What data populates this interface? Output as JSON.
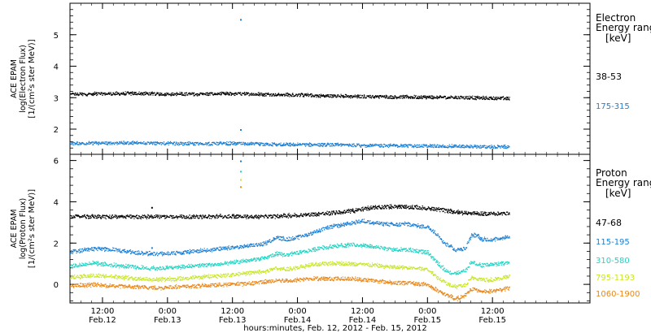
{
  "chart_data": [
    {
      "type": "scatter",
      "title": "",
      "ylabel_lines": [
        "ACE EPAM",
        "log(Electron Flux)",
        "[1/(cm²s ster MeV)]"
      ],
      "xlim": [
        0,
        96
      ],
      "ylim": [
        1.2,
        6.0
      ],
      "yticks": [
        2,
        3,
        4,
        5
      ],
      "legend_title_lines": [
        "Electron",
        "Energy range",
        "[keV]"
      ],
      "series": [
        {
          "name": "38-53",
          "color": "#000000",
          "points": [
            [
              0,
              3.12
            ],
            [
              6,
              3.14
            ],
            [
              12,
              3.15
            ],
            [
              18,
              3.13
            ],
            [
              24,
              3.13
            ],
            [
              30,
              3.14
            ],
            [
              36,
              3.12
            ],
            [
              42,
              3.1
            ],
            [
              48,
              3.07
            ],
            [
              54,
              3.05
            ],
            [
              60,
              3.04
            ],
            [
              66,
              3.03
            ],
            [
              72,
              3.02
            ],
            [
              78,
              3.0
            ],
            [
              81,
              2.99
            ]
          ],
          "outliers": []
        },
        {
          "name": "175-315",
          "color": "#1a7fd4",
          "points": [
            [
              0,
              1.57
            ],
            [
              6,
              1.57
            ],
            [
              12,
              1.58
            ],
            [
              18,
              1.56
            ],
            [
              24,
              1.55
            ],
            [
              30,
              1.56
            ],
            [
              36,
              1.53
            ],
            [
              42,
              1.52
            ],
            [
              48,
              1.52
            ],
            [
              54,
              1.5
            ],
            [
              60,
              1.49
            ],
            [
              66,
              1.48
            ],
            [
              72,
              1.47
            ],
            [
              78,
              1.45
            ],
            [
              81,
              1.45
            ]
          ],
          "outliers": [
            [
              31.4,
              5.5
            ],
            [
              31.4,
              2.0
            ]
          ]
        }
      ]
    },
    {
      "type": "scatter",
      "title": "",
      "ylabel_lines": [
        "ACE EPAM",
        "log(Proton Flux)",
        "[1/(cm²s ster MeV)]"
      ],
      "xlim": [
        0,
        96
      ],
      "ylim": [
        -0.9,
        6.3
      ],
      "yticks": [
        0,
        2,
        4,
        6
      ],
      "legend_title_lines": [
        "Proton",
        "Energy range",
        "[keV]"
      ],
      "series": [
        {
          "name": "47-68",
          "color": "#000000",
          "points": [
            [
              0,
              3.3
            ],
            [
              12,
              3.3
            ],
            [
              18,
              3.3
            ],
            [
              24,
              3.3
            ],
            [
              30,
              3.32
            ],
            [
              36,
              3.3
            ],
            [
              40,
              3.35
            ],
            [
              44,
              3.4
            ],
            [
              48,
              3.48
            ],
            [
              52,
              3.58
            ],
            [
              56,
              3.75
            ],
            [
              60,
              3.8
            ],
            [
              64,
              3.75
            ],
            [
              68,
              3.65
            ],
            [
              72,
              3.5
            ],
            [
              76,
              3.45
            ],
            [
              80,
              3.45
            ],
            [
              81,
              3.45
            ]
          ],
          "outliers": [
            [
              15,
              3.75
            ]
          ]
        },
        {
          "name": "115-195",
          "color": "#1a7fd4",
          "points": [
            [
              0,
              1.6
            ],
            [
              4,
              1.75
            ],
            [
              8,
              1.7
            ],
            [
              12,
              1.55
            ],
            [
              16,
              1.5
            ],
            [
              20,
              1.55
            ],
            [
              24,
              1.65
            ],
            [
              28,
              1.75
            ],
            [
              32,
              1.85
            ],
            [
              36,
              2.0
            ],
            [
              38,
              2.3
            ],
            [
              40,
              2.2
            ],
            [
              42,
              2.3
            ],
            [
              44,
              2.45
            ],
            [
              46,
              2.65
            ],
            [
              48,
              2.8
            ],
            [
              50,
              2.9
            ],
            [
              52,
              3.0
            ],
            [
              54,
              3.1
            ],
            [
              56,
              3.0
            ],
            [
              58,
              2.95
            ],
            [
              60,
              2.9
            ],
            [
              62,
              2.95
            ],
            [
              64,
              2.85
            ],
            [
              66,
              2.8
            ],
            [
              68,
              2.4
            ],
            [
              69,
              2.0
            ],
            [
              70,
              1.9
            ],
            [
              71,
              1.7
            ],
            [
              72,
              1.7
            ],
            [
              73,
              1.8
            ],
            [
              74,
              2.4
            ],
            [
              75,
              2.4
            ],
            [
              76,
              2.2
            ],
            [
              78,
              2.2
            ],
            [
              80,
              2.3
            ],
            [
              81,
              2.35
            ]
          ],
          "outliers": [
            [
              15,
              1.8
            ],
            [
              31.4,
              6.0
            ]
          ]
        },
        {
          "name": "310-580",
          "color": "#22d3c4",
          "points": [
            [
              0,
              0.9
            ],
            [
              4,
              1.05
            ],
            [
              8,
              0.95
            ],
            [
              12,
              0.85
            ],
            [
              16,
              0.8
            ],
            [
              20,
              0.85
            ],
            [
              24,
              0.95
            ],
            [
              28,
              1.0
            ],
            [
              32,
              1.15
            ],
            [
              36,
              1.3
            ],
            [
              38,
              1.5
            ],
            [
              40,
              1.45
            ],
            [
              42,
              1.55
            ],
            [
              44,
              1.65
            ],
            [
              46,
              1.8
            ],
            [
              48,
              1.85
            ],
            [
              50,
              1.9
            ],
            [
              52,
              1.95
            ],
            [
              54,
              1.9
            ],
            [
              56,
              1.85
            ],
            [
              58,
              1.75
            ],
            [
              60,
              1.7
            ],
            [
              62,
              1.7
            ],
            [
              64,
              1.65
            ],
            [
              66,
              1.55
            ],
            [
              68,
              1.0
            ],
            [
              69,
              0.75
            ],
            [
              70,
              0.6
            ],
            [
              71,
              0.55
            ],
            [
              72,
              0.6
            ],
            [
              73,
              0.7
            ],
            [
              74,
              1.1
            ],
            [
              76,
              0.95
            ],
            [
              78,
              1.0
            ],
            [
              80,
              1.05
            ],
            [
              81,
              1.1
            ]
          ],
          "outliers": [
            [
              31.4,
              5.5
            ]
          ]
        },
        {
          "name": "795-1193",
          "color": "#c8e62a",
          "points": [
            [
              0,
              0.35
            ],
            [
              4,
              0.45
            ],
            [
              8,
              0.4
            ],
            [
              12,
              0.3
            ],
            [
              16,
              0.25
            ],
            [
              20,
              0.3
            ],
            [
              24,
              0.38
            ],
            [
              28,
              0.45
            ],
            [
              32,
              0.55
            ],
            [
              36,
              0.65
            ],
            [
              38,
              0.8
            ],
            [
              40,
              0.75
            ],
            [
              42,
              0.85
            ],
            [
              44,
              0.95
            ],
            [
              46,
              1.0
            ],
            [
              48,
              1.05
            ],
            [
              50,
              1.05
            ],
            [
              52,
              1.0
            ],
            [
              54,
              0.98
            ],
            [
              56,
              0.95
            ],
            [
              58,
              0.9
            ],
            [
              60,
              0.85
            ],
            [
              62,
              0.85
            ],
            [
              64,
              0.8
            ],
            [
              66,
              0.75
            ],
            [
              68,
              0.3
            ],
            [
              70,
              0.0
            ],
            [
              71,
              -0.1
            ],
            [
              72,
              -0.05
            ],
            [
              73,
              0.0
            ],
            [
              74,
              0.35
            ],
            [
              76,
              0.25
            ],
            [
              78,
              0.25
            ],
            [
              80,
              0.35
            ],
            [
              81,
              0.4
            ]
          ],
          "outliers": [
            [
              31.4,
              5.1
            ]
          ]
        },
        {
          "name": "1060-1900",
          "color": "#e8871a",
          "points": [
            [
              0,
              -0.05
            ],
            [
              4,
              0.0
            ],
            [
              8,
              -0.05
            ],
            [
              12,
              -0.1
            ],
            [
              16,
              -0.15
            ],
            [
              20,
              -0.1
            ],
            [
              24,
              -0.05
            ],
            [
              28,
              0.0
            ],
            [
              32,
              0.05
            ],
            [
              36,
              0.15
            ],
            [
              38,
              0.2
            ],
            [
              40,
              0.2
            ],
            [
              42,
              0.25
            ],
            [
              44,
              0.3
            ],
            [
              46,
              0.3
            ],
            [
              48,
              0.3
            ],
            [
              50,
              0.3
            ],
            [
              52,
              0.3
            ],
            [
              54,
              0.25
            ],
            [
              56,
              0.2
            ],
            [
              58,
              0.15
            ],
            [
              60,
              0.1
            ],
            [
              62,
              0.1
            ],
            [
              64,
              0.05
            ],
            [
              66,
              0.0
            ],
            [
              68,
              -0.3
            ],
            [
              70,
              -0.55
            ],
            [
              71,
              -0.7
            ],
            [
              72,
              -0.6
            ],
            [
              73,
              -0.5
            ],
            [
              74,
              -0.2
            ],
            [
              76,
              -0.3
            ],
            [
              78,
              -0.3
            ],
            [
              80,
              -0.2
            ],
            [
              81,
              -0.15
            ]
          ],
          "outliers": [
            [
              31.4,
              4.75
            ]
          ]
        }
      ]
    }
  ],
  "x_axis": {
    "ticks": [
      {
        "hour": 6,
        "top": "12:00",
        "bottom": "Feb.12"
      },
      {
        "hour": 18,
        "top": "0:00",
        "bottom": "Feb.13"
      },
      {
        "hour": 30,
        "top": "12:00",
        "bottom": "Feb.13"
      },
      {
        "hour": 42,
        "top": "0:00",
        "bottom": "Feb.14"
      },
      {
        "hour": 54,
        "top": "12:00",
        "bottom": "Feb.14"
      },
      {
        "hour": 66,
        "top": "0:00",
        "bottom": "Feb.15"
      },
      {
        "hour": 78,
        "top": "12:00",
        "bottom": "Feb.15"
      }
    ],
    "label": "hours:minutes, Feb. 12, 2012 - Feb. 15, 2012"
  }
}
